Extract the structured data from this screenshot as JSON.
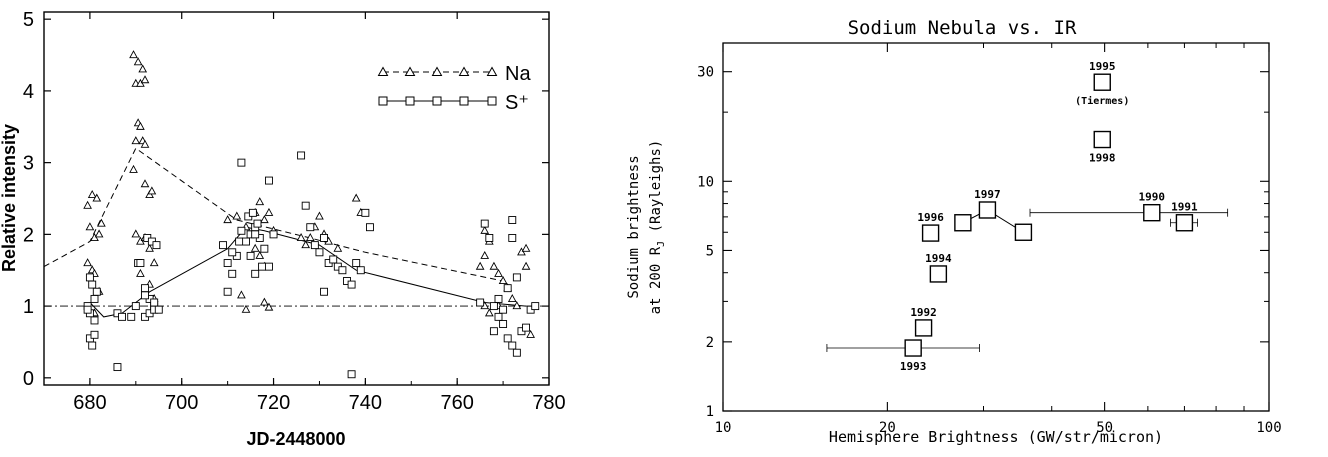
{
  "chart_data": [
    {
      "type": "scatter",
      "title": "",
      "xlabel": "JD-2448000",
      "ylabel": "Relative intensity",
      "xlim": [
        670,
        780
      ],
      "ylim": [
        -0.1,
        5.1
      ],
      "x_ticks": [
        "680",
        "700",
        "720",
        "740",
        "760",
        "780"
      ],
      "y_ticks": [
        "0",
        "1",
        "2",
        "3",
        "4",
        "5"
      ],
      "reference_line": 1,
      "legend_position": "top-right",
      "legend": [
        {
          "label": "Na",
          "series": "Na"
        },
        {
          "label": "S⁺",
          "series": "S+"
        }
      ],
      "series": [
        {
          "name": "Na",
          "marker": "triangle",
          "line_style": "dashed",
          "trend": [
            [
              670,
              1.55
            ],
            [
              680,
              1.9
            ],
            [
              690,
              3.2
            ],
            [
              712,
              2.2
            ],
            [
              728,
              1.95
            ],
            [
              740,
              1.75
            ],
            [
              770,
              1.35
            ]
          ],
          "points": [
            [
              679.5,
              2.4
            ],
            [
              680,
              2.1
            ],
            [
              680.5,
              2.55
            ],
            [
              681,
              1.95
            ],
            [
              681.5,
              2.5
            ],
            [
              682,
              2.0
            ],
            [
              682.5,
              2.15
            ],
            [
              679.5,
              1.6
            ],
            [
              680.5,
              1.5
            ],
            [
              681,
              1.45
            ],
            [
              682,
              1.2
            ],
            [
              681,
              0.9
            ],
            [
              689.5,
              4.5
            ],
            [
              690,
              4.1
            ],
            [
              690.5,
              4.4
            ],
            [
              691,
              4.1
            ],
            [
              691.5,
              4.3
            ],
            [
              692,
              4.15
            ],
            [
              690.5,
              3.55
            ],
            [
              691,
              3.5
            ],
            [
              691.5,
              3.3
            ],
            [
              690,
              3.3
            ],
            [
              692,
              3.25
            ],
            [
              689.5,
              2.9
            ],
            [
              692,
              2.7
            ],
            [
              693,
              2.55
            ],
            [
              693.5,
              2.6
            ],
            [
              690,
              2.0
            ],
            [
              691,
              1.9
            ],
            [
              692,
              1.95
            ],
            [
              693,
              1.8
            ],
            [
              694,
              1.6
            ],
            [
              691,
              1.45
            ],
            [
              693,
              1.3
            ],
            [
              694,
              1.1
            ],
            [
              710,
              2.2
            ],
            [
              712,
              2.25
            ],
            [
              714,
              2.1
            ],
            [
              716,
              2.3
            ],
            [
              717,
              2.45
            ],
            [
              718,
              2.2
            ],
            [
              719,
              2.3
            ],
            [
              720,
              2.05
            ],
            [
              716,
              1.8
            ],
            [
              717,
              1.7
            ],
            [
              718,
              1.55
            ],
            [
              713,
              1.15
            ],
            [
              714,
              0.95
            ],
            [
              718,
              1.05
            ],
            [
              719,
              0.98
            ],
            [
              726,
              1.95
            ],
            [
              727,
              1.85
            ],
            [
              728,
              1.95
            ],
            [
              729,
              2.1
            ],
            [
              730,
              2.25
            ],
            [
              731,
              2.0
            ],
            [
              732,
              1.9
            ],
            [
              734,
              1.8
            ],
            [
              738,
              2.5
            ],
            [
              739,
              2.3
            ],
            [
              765,
              1.55
            ],
            [
              766,
              1.7
            ],
            [
              767,
              1.9
            ],
            [
              766,
              2.05
            ],
            [
              768,
              1.55
            ],
            [
              769,
              1.45
            ],
            [
              770,
              1.35
            ],
            [
              771,
              1.25
            ],
            [
              772,
              1.1
            ],
            [
              773,
              1.0
            ],
            [
              774,
              1.75
            ],
            [
              775,
              1.8
            ],
            [
              775,
              1.55
            ],
            [
              776,
              0.6
            ],
            [
              766,
              1.0
            ],
            [
              767,
              0.9
            ],
            [
              769,
              1.0
            ]
          ]
        },
        {
          "name": "S+",
          "marker": "square",
          "line_style": "solid",
          "trend": [
            [
              680,
              1.05
            ],
            [
              683,
              0.85
            ],
            [
              687,
              0.9
            ],
            [
              693,
              1.2
            ],
            [
              710,
              1.8
            ],
            [
              714,
              2.1
            ],
            [
              718,
              2.05
            ],
            [
              730,
              1.85
            ],
            [
              738,
              1.5
            ],
            [
              766,
              1.05
            ],
            [
              775,
              1.0
            ]
          ],
          "points": [
            [
              680,
              1.4
            ],
            [
              680.5,
              1.3
            ],
            [
              681,
              1.1
            ],
            [
              679.5,
              1.0
            ],
            [
              680,
              0.9
            ],
            [
              681,
              0.8
            ],
            [
              680,
              0.55
            ],
            [
              680.5,
              0.45
            ],
            [
              681,
              0.6
            ],
            [
              679.5,
              0.95
            ],
            [
              681.5,
              1.2
            ],
            [
              686,
              0.15
            ],
            [
              686,
              0.9
            ],
            [
              687,
              0.85
            ],
            [
              689,
              0.85
            ],
            [
              690,
              1.0
            ],
            [
              690.5,
              1.6
            ],
            [
              691,
              1.6
            ],
            [
              692,
              1.25
            ],
            [
              693,
              1.1
            ],
            [
              694,
              1.0
            ],
            [
              692.5,
              1.95
            ],
            [
              693.5,
              1.9
            ],
            [
              694.5,
              1.85
            ],
            [
              692,
              0.85
            ],
            [
              693,
              0.9
            ],
            [
              694,
              0.95
            ],
            [
              695,
              0.95
            ],
            [
              692,
              1.15
            ],
            [
              694,
              1.05
            ],
            [
              710,
              1.2
            ],
            [
              711,
              1.45
            ],
            [
              712,
              1.7
            ],
            [
              713,
              3.0
            ],
            [
              714,
              1.9
            ],
            [
              715,
              2.0
            ],
            [
              716,
              2.1
            ],
            [
              714.5,
              2.25
            ],
            [
              715.5,
              2.3
            ],
            [
              716.5,
              2.15
            ],
            [
              717,
              1.95
            ],
            [
              717.5,
              1.55
            ],
            [
              715,
              1.7
            ],
            [
              719,
              2.75
            ],
            [
              720,
              2.0
            ],
            [
              719,
              1.55
            ],
            [
              716,
              1.45
            ],
            [
              718,
              1.8
            ],
            [
              712.5,
              1.9
            ],
            [
              711,
              1.75
            ],
            [
              709,
              1.85
            ],
            [
              710,
              1.6
            ],
            [
              713,
              2.05
            ],
            [
              716,
              2.0
            ],
            [
              726,
              3.1
            ],
            [
              727,
              2.4
            ],
            [
              728,
              2.1
            ],
            [
              729,
              1.85
            ],
            [
              730,
              1.75
            ],
            [
              731,
              1.95
            ],
            [
              732,
              1.6
            ],
            [
              733,
              1.65
            ],
            [
              734,
              1.55
            ],
            [
              735,
              1.5
            ],
            [
              736,
              1.35
            ],
            [
              737,
              1.3
            ],
            [
              738,
              1.6
            ],
            [
              739,
              1.5
            ],
            [
              740,
              2.3
            ],
            [
              741,
              2.1
            ],
            [
              737,
              0.05
            ],
            [
              731,
              1.2
            ],
            [
              765,
              1.05
            ],
            [
              766,
              2.15
            ],
            [
              767,
              1.95
            ],
            [
              768,
              1.0
            ],
            [
              769,
              0.85
            ],
            [
              770,
              0.75
            ],
            [
              771,
              1.25
            ],
            [
              772,
              2.2
            ],
            [
              772,
              1.95
            ],
            [
              773,
              1.4
            ],
            [
              770,
              0.95
            ],
            [
              771,
              0.55
            ],
            [
              772,
              0.45
            ],
            [
              773,
              0.35
            ],
            [
              774,
              0.65
            ],
            [
              775,
              0.7
            ],
            [
              776,
              0.95
            ],
            [
              777,
              1.0
            ],
            [
              768,
              0.65
            ],
            [
              769,
              1.1
            ]
          ]
        }
      ]
    },
    {
      "type": "scatter",
      "title": "Sodium Nebula vs. IR",
      "xlabel": "Hemisphere Brightness (GW/str/micron)",
      "ylabel": "Sodium brightness",
      "ylabel_line2": "at 200 R",
      "ylabel_sub": "J",
      "ylabel_unit": "(Rayleighs)",
      "x_scale": "log",
      "y_scale": "log",
      "xlim": [
        10,
        100
      ],
      "ylim": [
        1,
        40
      ],
      "x_ticks": [
        "10",
        "20",
        "50",
        "100"
      ],
      "y_ticks": [
        "1",
        "2",
        "5",
        "10",
        "30"
      ],
      "trend_line": [
        [
          27.5,
          6.6
        ],
        [
          30.5,
          7.5
        ],
        [
          35.5,
          6.0
        ]
      ],
      "points": [
        {
          "x": 22.3,
          "y": 1.88,
          "label": "1993",
          "label_pos": "below",
          "xerr": [
            15.5,
            29.5
          ]
        },
        {
          "x": 23.3,
          "y": 2.3,
          "label": "1992",
          "label_pos": "above"
        },
        {
          "x": 24.8,
          "y": 3.95,
          "label": "1994",
          "label_pos": "above"
        },
        {
          "x": 24.0,
          "y": 5.95,
          "label": "1996",
          "label_pos": "above"
        },
        {
          "x": 27.5,
          "y": 6.6,
          "label": "",
          "label_pos": "none"
        },
        {
          "x": 30.5,
          "y": 7.5,
          "label": "1997",
          "label_pos": "above"
        },
        {
          "x": 35.5,
          "y": 6.0,
          "label": "",
          "label_pos": "none"
        },
        {
          "x": 61.0,
          "y": 7.3,
          "label": "1990",
          "label_pos": "above",
          "xerr": [
            36.5,
            84.0
          ]
        },
        {
          "x": 70.0,
          "y": 6.6,
          "label": "1991",
          "label_pos": "above",
          "xerr": [
            66.0,
            74.0
          ]
        },
        {
          "x": 49.5,
          "y": 27.0,
          "label": "1995",
          "label_pos": "above",
          "note": "(Tiermes)"
        },
        {
          "x": 49.5,
          "y": 15.2,
          "label": "1998",
          "label_pos": "below"
        }
      ]
    }
  ]
}
